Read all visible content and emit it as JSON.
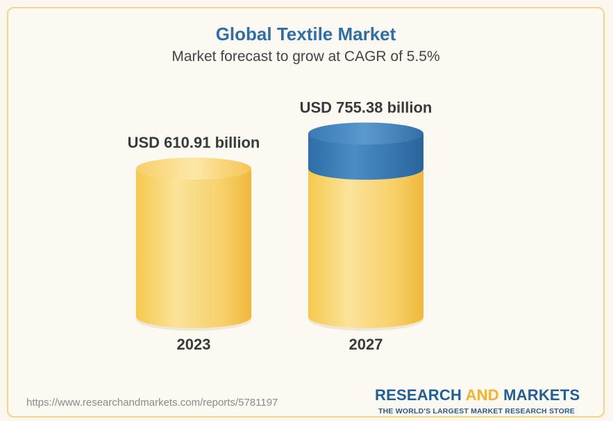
{
  "header": {
    "title": "Global Textile Market",
    "subtitle": "Market forecast to grow at CAGR of 5.5%"
  },
  "chart_data": {
    "type": "bar",
    "title": "Global Textile Market",
    "subtitle": "Market forecast to grow at CAGR of 5.5%",
    "categories": [
      "2023",
      "2027"
    ],
    "values": [
      610.91,
      755.38
    ],
    "data_labels": [
      "USD 610.91 billion",
      "USD 755.38 billion"
    ],
    "xlabel": "",
    "ylabel": "",
    "grid": false,
    "legend": "none",
    "colors": {
      "bar": "#f7cf60",
      "bar_highlight": "#fbe39a",
      "growth_cap": "#3d7fb8"
    }
  },
  "footer": {
    "url": "https://www.researchandmarkets.com/reports/5781197",
    "brand_part1": "RESEARCH",
    "brand_part2": "AND",
    "brand_part3": "MARKETS",
    "tagline": "THE WORLD'S LARGEST MARKET RESEARCH STORE"
  }
}
